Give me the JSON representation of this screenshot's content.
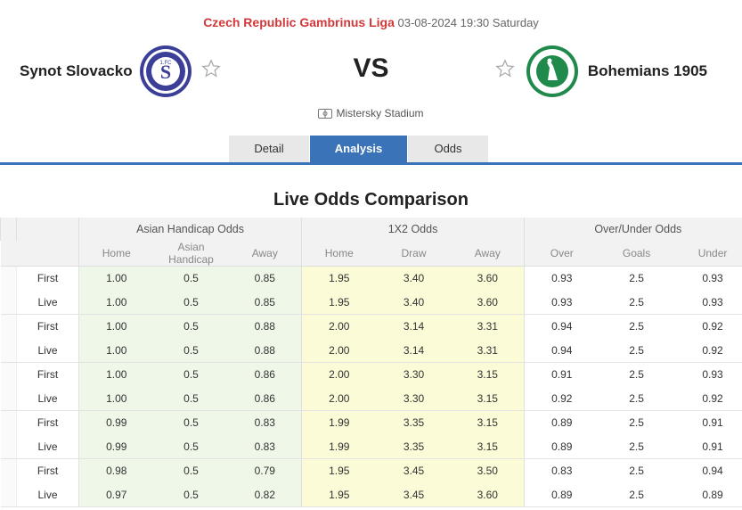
{
  "match": {
    "league": "Czech Republic Gambrinus Liga",
    "datetime": "03-08-2024 19:30 Saturday",
    "home_team": "Synot Slovacko",
    "away_team": "Bohemians 1905",
    "vs": "VS",
    "venue": "Mistersky Stadium",
    "home_logo_text": "1.FC SLOVACKO",
    "away_logo_text": "BOHEMIANS PRAHA"
  },
  "tabs": [
    {
      "label": "Detail",
      "active": false
    },
    {
      "label": "Analysis",
      "active": true
    },
    {
      "label": "Odds",
      "active": false
    }
  ],
  "section_title": "Live Odds Comparison",
  "table": {
    "groups": [
      "Asian Handicap Odds",
      "1X2 Odds",
      "Over/Under Odds"
    ],
    "columns": [
      "Home",
      "Asian Handicap",
      "Away",
      "Home",
      "Draw",
      "Away",
      "Over",
      "Goals",
      "Under"
    ],
    "rows": [
      {
        "type": "First",
        "values": [
          "1.00",
          "0.5",
          "0.85",
          "1.95",
          "3.40",
          "3.60",
          "0.93",
          "2.5",
          "0.93"
        ]
      },
      {
        "type": "Live",
        "values": [
          "1.00",
          "0.5",
          "0.85",
          "1.95",
          "3.40",
          "3.60",
          "0.93",
          "2.5",
          "0.93"
        ]
      },
      {
        "type": "First",
        "values": [
          "1.00",
          "0.5",
          "0.88",
          "2.00",
          "3.14",
          "3.31",
          "0.94",
          "2.5",
          "0.92"
        ]
      },
      {
        "type": "Live",
        "values": [
          "1.00",
          "0.5",
          "0.88",
          "2.00",
          "3.14",
          "3.31",
          "0.94",
          "2.5",
          "0.92"
        ]
      },
      {
        "type": "First",
        "values": [
          "1.00",
          "0.5",
          "0.86",
          "2.00",
          "3.30",
          "3.15",
          "0.91",
          "2.5",
          "0.93"
        ]
      },
      {
        "type": "Live",
        "values": [
          "1.00",
          "0.5",
          "0.86",
          "2.00",
          "3.30",
          "3.15",
          "0.92",
          "2.5",
          "0.92"
        ]
      },
      {
        "type": "First",
        "values": [
          "0.99",
          "0.5",
          "0.83",
          "1.99",
          "3.35",
          "3.15",
          "0.89",
          "2.5",
          "0.91"
        ]
      },
      {
        "type": "Live",
        "values": [
          "0.99",
          "0.5",
          "0.83",
          "1.99",
          "3.35",
          "3.15",
          "0.89",
          "2.5",
          "0.91"
        ]
      },
      {
        "type": "First",
        "values": [
          "0.98",
          "0.5",
          "0.79",
          "1.95",
          "3.45",
          "3.50",
          "0.83",
          "2.5",
          "0.94"
        ]
      },
      {
        "type": "Live",
        "values": [
          "0.97",
          "0.5",
          "0.82",
          "1.95",
          "3.45",
          "3.60",
          "0.89",
          "2.5",
          "0.89"
        ]
      }
    ]
  },
  "colors": {
    "league": "#d0383a",
    "tab_active": "#3a73b8",
    "asian_handicap_bg": "#eef7e8",
    "x12_bg": "#fbfbd8",
    "home_logo": "#3b3f98",
    "away_logo": "#1f8a4c"
  },
  "icons": [
    "star-icon",
    "stadium-icon"
  ]
}
